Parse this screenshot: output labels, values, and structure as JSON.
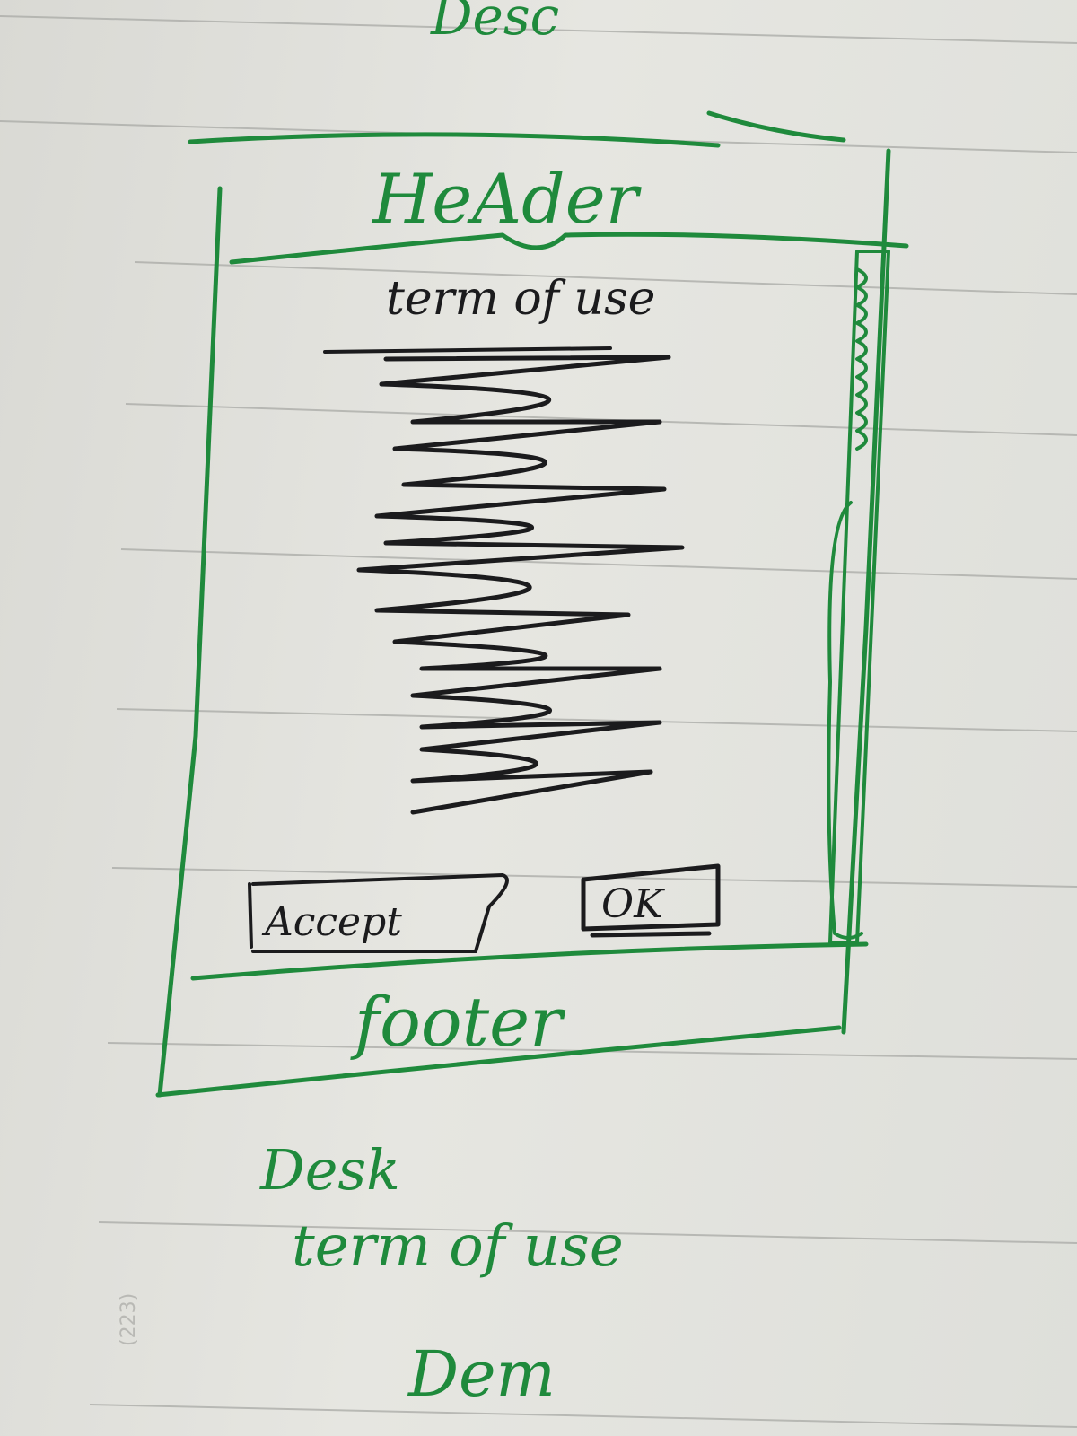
{
  "colors": {
    "paper": "#e3e3de",
    "rule_line": "#a9aaa6",
    "green_ink": "#1f8a3c",
    "black_ink": "#1b1b1d"
  },
  "top_note": "Desc",
  "wireframe": {
    "header_label": "HeAder",
    "content_title": "term of use",
    "body_text_icon": "scribble-text-icon",
    "left_button_label": "Accept",
    "right_button_label": "OK",
    "footer_label": "footer",
    "scrollbar_icon": "scrollbar-icon"
  },
  "bottom_notes": {
    "line1": "Desk",
    "line2": "term of use",
    "line3": "Dem"
  },
  "margin_mark": "(223)"
}
